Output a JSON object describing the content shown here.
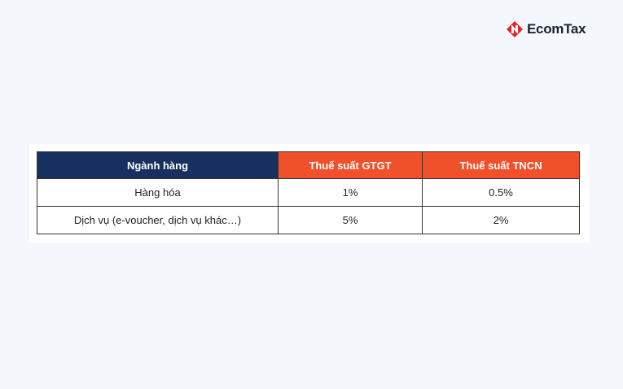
{
  "header": {
    "logo": "EcomTax"
  },
  "table": {
    "columns": [
      "Ngành hàng",
      "Thuế suất GTGT",
      "Thuế suất TNCN"
    ],
    "rows": [
      [
        "Hàng hóa",
        "1%",
        "0.5%"
      ],
      [
        "Dịch vụ (e-voucher, dịch vụ khác…)",
        "5%",
        "2%"
      ]
    ]
  }
}
